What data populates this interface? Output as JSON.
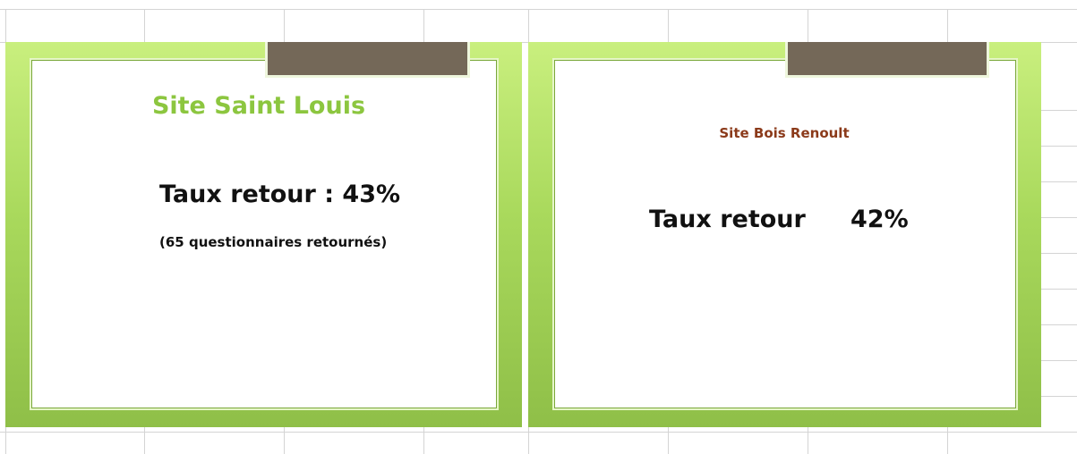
{
  "slides": [
    {
      "title": "Site Saint Louis",
      "rate": "Taux retour : 43%",
      "note": "(65 questionnaires retournés)"
    },
    {
      "title": "Site Bois Renoult",
      "rate_label": "Taux retour",
      "rate_value": "42%"
    }
  ]
}
